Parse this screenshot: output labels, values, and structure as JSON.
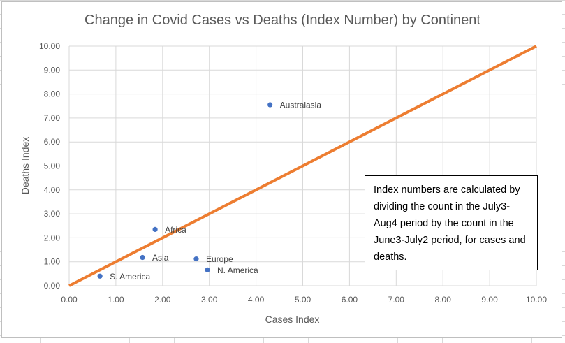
{
  "chart_data": {
    "type": "scatter",
    "title": "Change in Covid Cases vs Deaths  (Index Number) by Continent",
    "xlabel": "Cases Index",
    "ylabel": "Deaths Index",
    "xlim": [
      0,
      10
    ],
    "ylim": [
      0,
      10
    ],
    "x_ticks": [
      "0.00",
      "1.00",
      "2.00",
      "3.00",
      "4.00",
      "5.00",
      "6.00",
      "7.00",
      "8.00",
      "9.00",
      "10.00"
    ],
    "y_ticks": [
      "0.00",
      "1.00",
      "2.00",
      "3.00",
      "4.00",
      "5.00",
      "6.00",
      "7.00",
      "8.00",
      "9.00",
      "10.00"
    ],
    "grid": true,
    "points": [
      {
        "label": "Australasia",
        "x": 4.3,
        "y": 7.55
      },
      {
        "label": "Africa",
        "x": 1.84,
        "y": 2.35
      },
      {
        "label": "Asia",
        "x": 1.57,
        "y": 1.18
      },
      {
        "label": "Europe",
        "x": 2.72,
        "y": 1.12
      },
      {
        "label": "N. America",
        "x": 2.96,
        "y": 0.66
      },
      {
        "label": "S. America",
        "x": 0.66,
        "y": 0.4
      }
    ],
    "reference_line": {
      "x": [
        0,
        10
      ],
      "y": [
        0,
        10
      ]
    },
    "colors": {
      "points": "#4472c4",
      "reference_line": "#ed7d31",
      "gridline": "#d9d9d9",
      "text": "#595959"
    },
    "annotation": "Index numbers are calculated by dividing the count in the July3-Aug4 period by the count in the June3-July2 period, for cases and deaths."
  }
}
